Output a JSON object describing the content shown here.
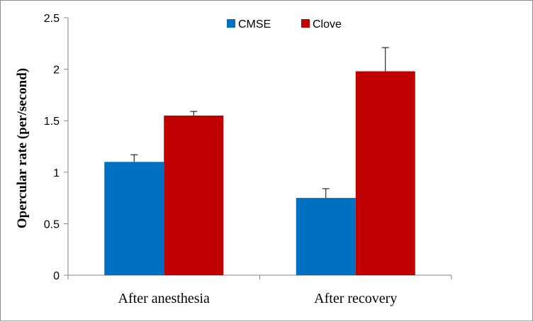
{
  "chart_data": {
    "type": "bar",
    "title": "",
    "xlabel": "",
    "ylabel": "Opercular rate (per/second)",
    "categories": [
      "After anesthesia",
      "After recovery"
    ],
    "series": [
      {
        "name": "CMSE",
        "color": "#0070C0",
        "values": [
          1.1,
          0.75
        ],
        "errors": [
          0.07,
          0.09
        ]
      },
      {
        "name": "Clove",
        "color": "#C00000",
        "values": [
          1.55,
          1.98
        ],
        "errors": [
          0.04,
          0.23
        ]
      }
    ],
    "ylim": [
      0,
      2.5
    ],
    "yticks": [
      "0",
      "0.5",
      "1",
      "1.5",
      "2",
      "2.5"
    ],
    "legend_position": "top-center",
    "grid": false
  }
}
